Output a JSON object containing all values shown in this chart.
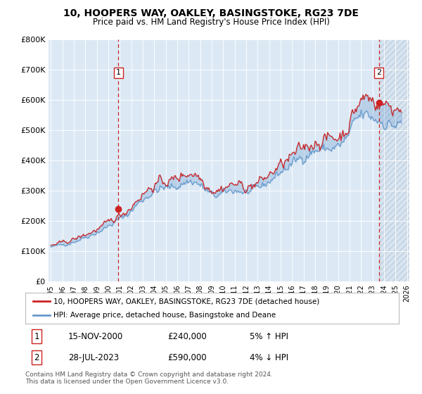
{
  "title1": "10, HOOPERS WAY, OAKLEY, BASINGSTOKE, RG23 7DE",
  "title2": "Price paid vs. HM Land Registry's House Price Index (HPI)",
  "legend_line1": "10, HOOPERS WAY, OAKLEY, BASINGSTOKE, RG23 7DE (detached house)",
  "legend_line2": "HPI: Average price, detached house, Basingstoke and Deane",
  "annotation1_label": "1",
  "annotation1_date": "15-NOV-2000",
  "annotation1_price": "£240,000",
  "annotation1_hpi": "5% ↑ HPI",
  "annotation2_label": "2",
  "annotation2_date": "28-JUL-2023",
  "annotation2_price": "£590,000",
  "annotation2_hpi": "4% ↓ HPI",
  "footnote": "Contains HM Land Registry data © Crown copyright and database right 2024.\nThis data is licensed under the Open Government Licence v3.0.",
  "plot_bg_color": "#dce9f5",
  "hatch_bg_color": "#d0dce8",
  "red_color": "#cc2222",
  "blue_color": "#6699cc",
  "annotation_box_color": "#cc2222",
  "vline_color": "#cc2222",
  "ylim_min": 0,
  "ylim_max": 800000,
  "ytick_values": [
    0,
    100000,
    200000,
    300000,
    400000,
    500000,
    600000,
    700000,
    800000
  ],
  "ytick_labels": [
    "£0",
    "£100K",
    "£200K",
    "£300K",
    "£400K",
    "£500K",
    "£600K",
    "£700K",
    "£800K"
  ],
  "year_start": 1995,
  "year_end": 2026,
  "purchase1_year": 2000.88,
  "purchase1_price": 240000,
  "purchase2_year": 2023.55,
  "purchase2_price": 590000
}
